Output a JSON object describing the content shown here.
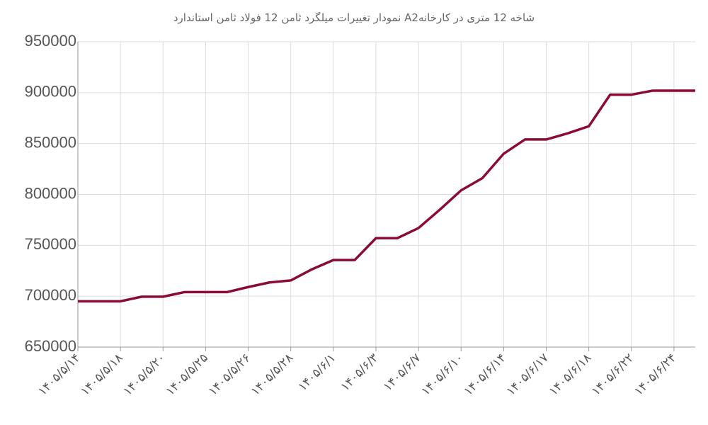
{
  "chart_data": {
    "type": "line",
    "title": "نمودار تغییرات میلگرد ثامن 12 فولاد ثامن استاندارد A2شاخه 12 متری در کارخانه",
    "categories": [
      "۱۴۰۵/۵/۱۴",
      null,
      "۱۴۰۵/۵/۱۸",
      null,
      "۱۴۰۵/۵/۲۰",
      null,
      "۱۴۰۵/۵/۲۵",
      null,
      "۱۴۰۵/۵/۲۶",
      null,
      "۱۴۰۵/۵/۲۸",
      null,
      "۱۴۰۵/۶/۱",
      null,
      "۱۴۰۵/۶/۳",
      null,
      "۱۴۰۵/۶/۷",
      null,
      "۱۴۰۵/۶/۱۰",
      null,
      "۱۴۰۵/۶/۱۴",
      null,
      "۱۴۰۵/۶/۱۷",
      null,
      "۱۴۰۵/۶/۱۸",
      null,
      "۱۴۰۵/۶/۲۲",
      null,
      "۱۴۰۵/۶/۲۴",
      null
    ],
    "values": [
      695000,
      695000,
      695000,
      699500,
      699500,
      704000,
      704000,
      704000,
      709000,
      713500,
      715500,
      726500,
      735500,
      735500,
      757000,
      757000,
      767000,
      785000,
      804000,
      816000,
      840000,
      854000,
      854000,
      860000,
      867000,
      898000,
      898000,
      902000,
      902000,
      902000
    ],
    "color": "#8b0a3a",
    "ylim": [
      650000,
      950000
    ],
    "yticks": [
      650000,
      700000,
      750000,
      800000,
      850000,
      900000,
      950000
    ],
    "grid": true
  }
}
